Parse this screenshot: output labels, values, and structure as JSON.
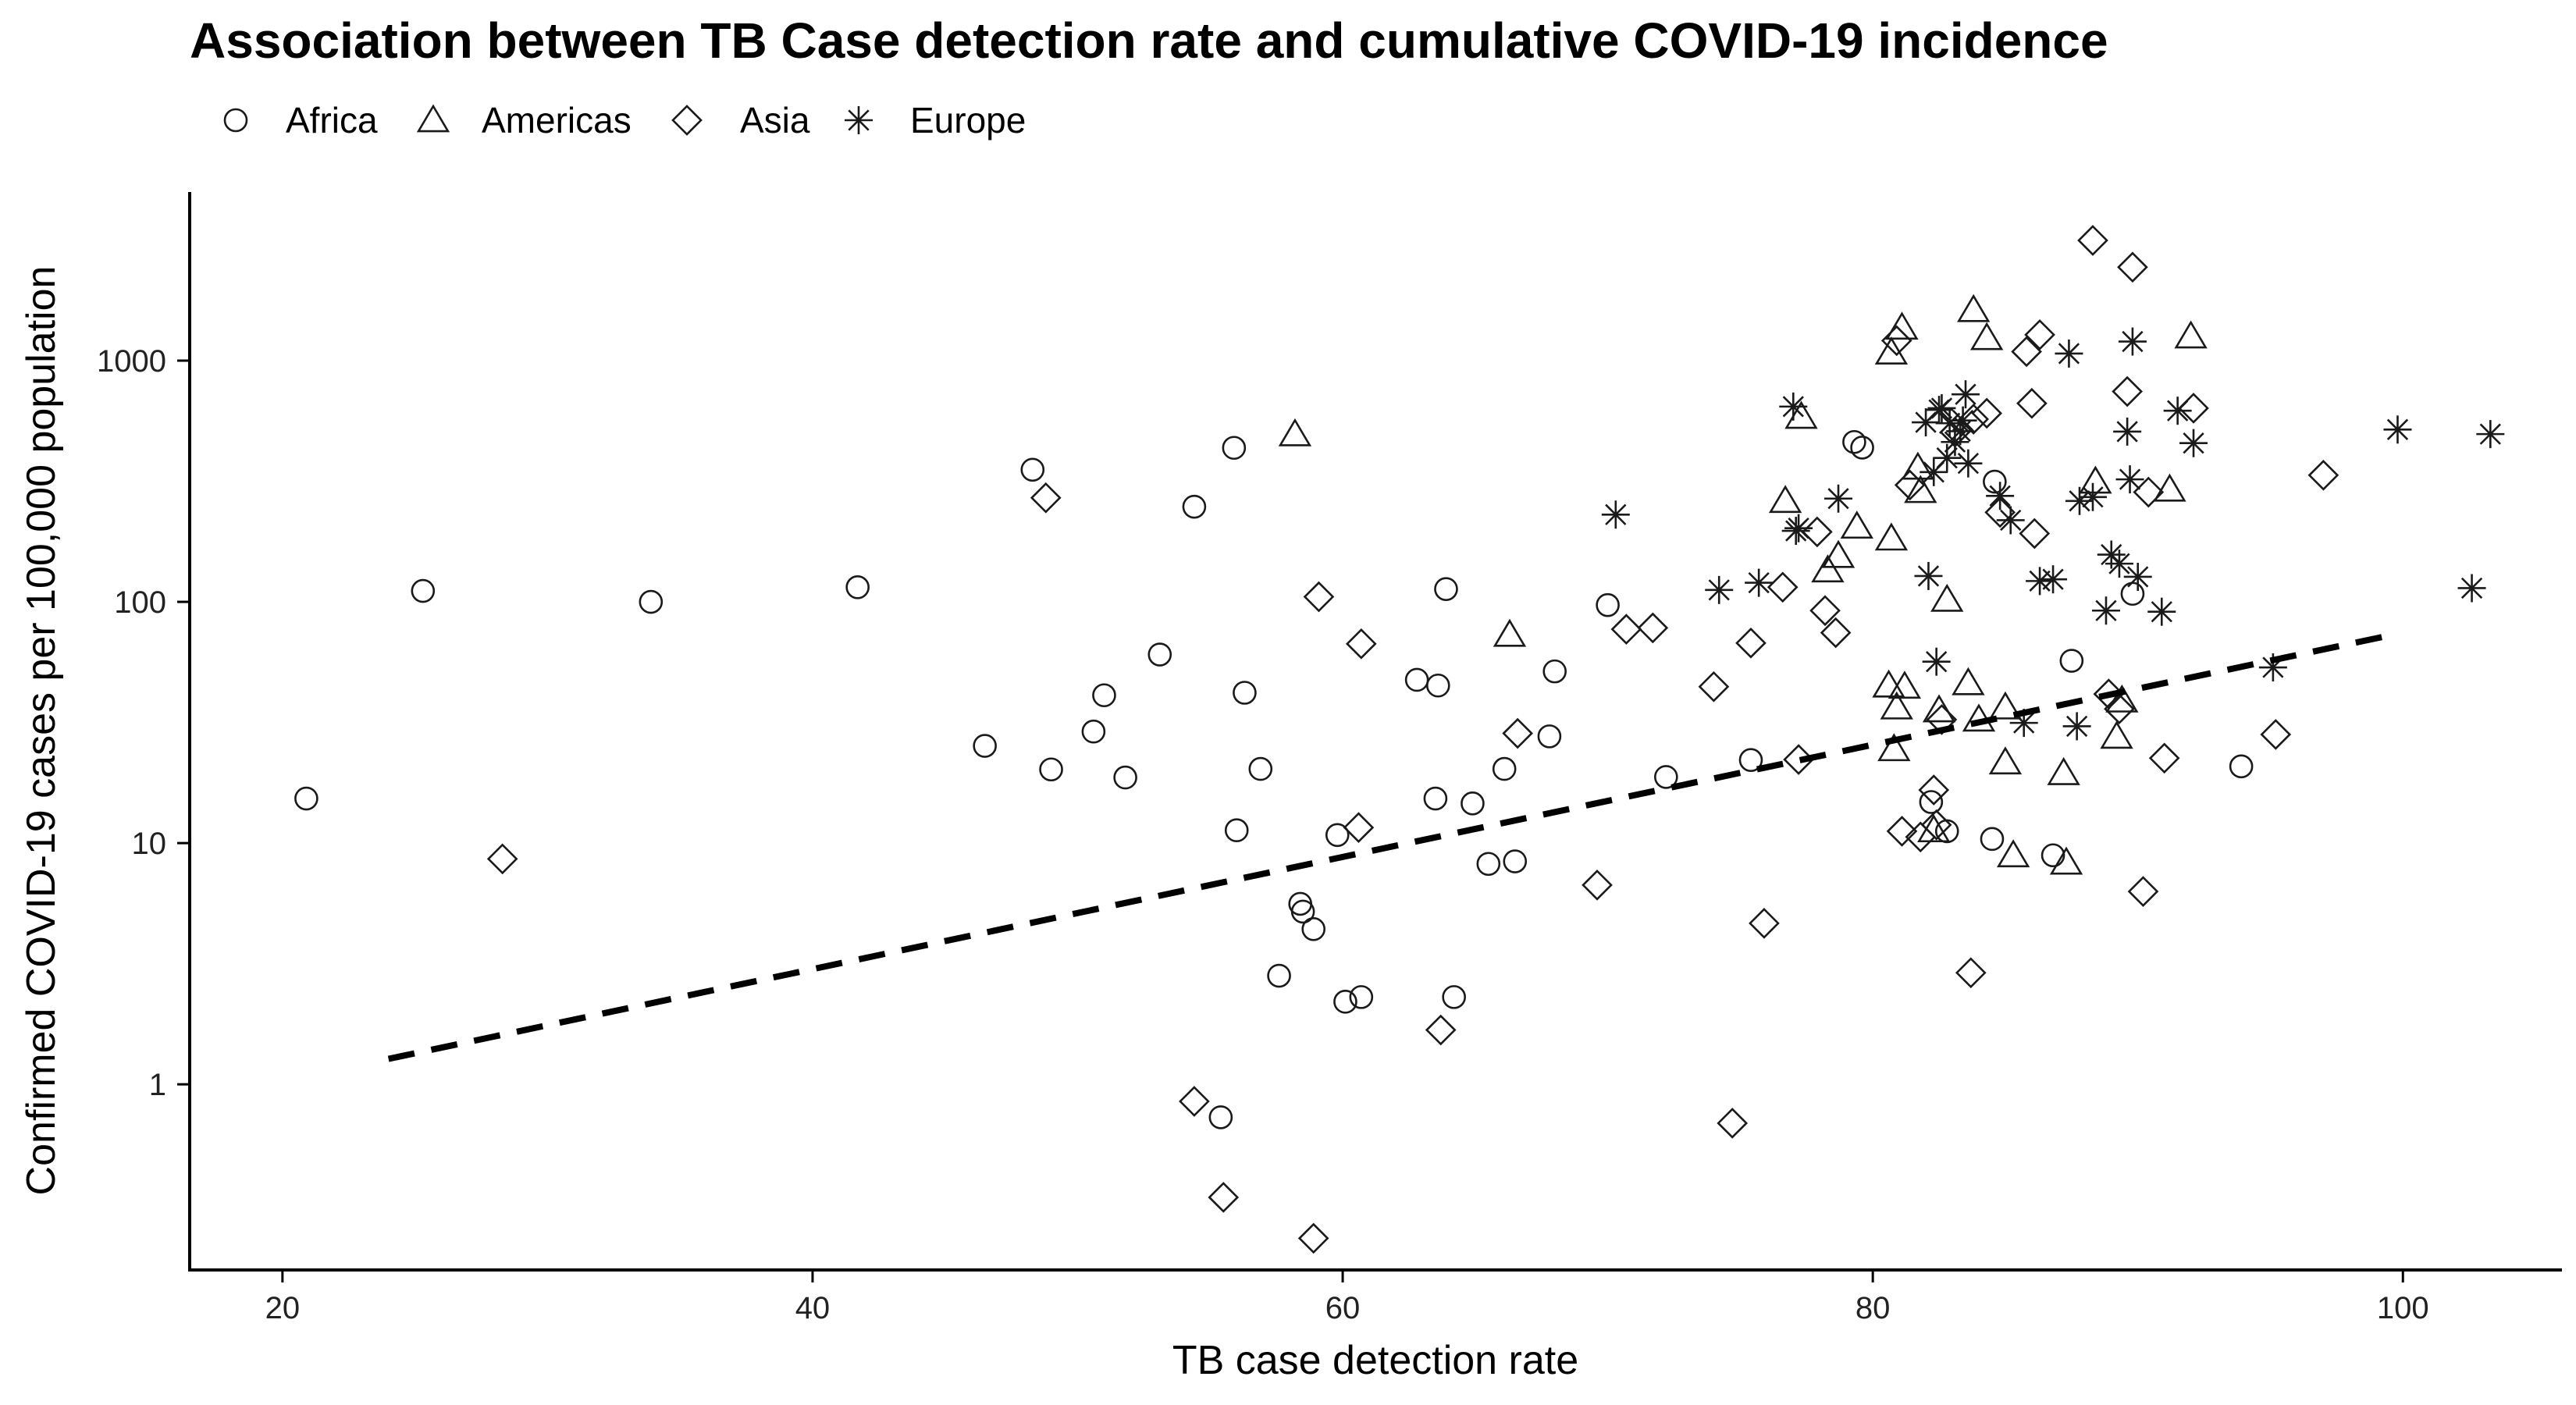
{
  "chart_data": {
    "type": "scatter",
    "title": "Association between TB Case detection rate and cumulative COVID-19 incidence",
    "xlabel": "TB case detection rate",
    "ylabel": "Confirmed COVID-19 cases per 100,000 population",
    "xlim": [
      16.5,
      106
    ],
    "ylim": [
      0.17,
      5000
    ],
    "y_scale": "log",
    "x_ticks": [
      20,
      40,
      60,
      80,
      100
    ],
    "y_ticks": [
      1,
      10,
      100,
      1000
    ],
    "legend_position": "top-left",
    "grid": false,
    "series": [
      {
        "name": "Africa",
        "marker": "circle",
        "points": [
          [
            20.9,
            15.3
          ],
          [
            25.3,
            111
          ],
          [
            33.9,
            100
          ],
          [
            41.7,
            115
          ],
          [
            46.5,
            25.3
          ],
          [
            48.3,
            353
          ],
          [
            49.0,
            20.2
          ],
          [
            50.6,
            29.0
          ],
          [
            51.0,
            41.0
          ],
          [
            51.8,
            18.7
          ],
          [
            53.1,
            60.5
          ],
          [
            54.4,
            248
          ],
          [
            55.4,
            0.73
          ],
          [
            55.9,
            435
          ],
          [
            56.0,
            11.3
          ],
          [
            56.3,
            42.0
          ],
          [
            56.9,
            20.3
          ],
          [
            57.6,
            2.82
          ],
          [
            58.4,
            5.6
          ],
          [
            58.5,
            5.2
          ],
          [
            58.9,
            4.4
          ],
          [
            59.8,
            10.8
          ],
          [
            60.1,
            2.2
          ],
          [
            60.7,
            2.3
          ],
          [
            62.8,
            47.5
          ],
          [
            63.5,
            15.3
          ],
          [
            63.6,
            45.0
          ],
          [
            63.9,
            113
          ],
          [
            64.2,
            2.3
          ],
          [
            64.9,
            14.6
          ],
          [
            65.5,
            8.2
          ],
          [
            66.1,
            20.3
          ],
          [
            66.5,
            8.4
          ],
          [
            67.8,
            27.7
          ],
          [
            68.0,
            51.5
          ],
          [
            70.0,
            97
          ],
          [
            72.2,
            18.8
          ],
          [
            75.4,
            22.1
          ],
          [
            79.3,
            460
          ],
          [
            79.6,
            436
          ],
          [
            82.2,
            14.8
          ],
          [
            82.8,
            11.2
          ],
          [
            84.5,
            10.4
          ],
          [
            84.6,
            315
          ],
          [
            86.8,
            8.9
          ],
          [
            87.5,
            57
          ],
          [
            89.8,
            108
          ],
          [
            93.9,
            20.8
          ]
        ]
      },
      {
        "name": "Americas",
        "marker": "triangle",
        "points": [
          [
            58.2,
            495
          ],
          [
            66.3,
            73
          ],
          [
            76.7,
            262
          ],
          [
            77.3,
            585
          ],
          [
            78.3,
            135
          ],
          [
            78.7,
            155
          ],
          [
            79.4,
            205
          ],
          [
            80.6,
            45
          ],
          [
            80.7,
            1080
          ],
          [
            80.7,
            183
          ],
          [
            80.8,
            24.5
          ],
          [
            80.9,
            36.5
          ],
          [
            81.1,
            1370
          ],
          [
            81.2,
            44.5
          ],
          [
            81.7,
            360
          ],
          [
            81.8,
            288
          ],
          [
            82.3,
            11.3
          ],
          [
            82.5,
            35.5
          ],
          [
            82.8,
            102
          ],
          [
            83.6,
            46
          ],
          [
            83.8,
            1620
          ],
          [
            84.0,
            32.5
          ],
          [
            84.3,
            1240
          ],
          [
            85.0,
            36.5
          ],
          [
            85.0,
            21.6
          ],
          [
            85.3,
            8.9
          ],
          [
            87.2,
            19.5
          ],
          [
            87.3,
            8.3
          ],
          [
            88.4,
            315
          ],
          [
            89.2,
            27.6
          ],
          [
            89.4,
            39
          ],
          [
            91.2,
            292
          ],
          [
            92.0,
            1260
          ]
        ]
      },
      {
        "name": "Asia",
        "marker": "diamond",
        "points": [
          [
            28.3,
            8.6
          ],
          [
            48.8,
            270
          ],
          [
            54.4,
            0.85
          ],
          [
            55.5,
            0.34
          ],
          [
            58.9,
            0.23
          ],
          [
            59.1,
            105
          ],
          [
            60.6,
            11.6
          ],
          [
            60.7,
            67
          ],
          [
            63.7,
            1.68
          ],
          [
            66.6,
            28.5
          ],
          [
            69.6,
            6.7
          ],
          [
            70.7,
            77
          ],
          [
            71.7,
            78
          ],
          [
            74.0,
            44.5
          ],
          [
            74.7,
            0.69
          ],
          [
            75.4,
            67.5
          ],
          [
            75.9,
            4.65
          ],
          [
            76.6,
            115
          ],
          [
            77.2,
            22.2
          ],
          [
            77.9,
            195
          ],
          [
            78.2,
            92
          ],
          [
            78.6,
            74.5
          ],
          [
            80.9,
            1210
          ],
          [
            81.1,
            11.2
          ],
          [
            81.4,
            305
          ],
          [
            81.8,
            10.6
          ],
          [
            82.3,
            16.6
          ],
          [
            82.4,
            11.9
          ],
          [
            82.6,
            32.5
          ],
          [
            83.1,
            505
          ],
          [
            83.8,
            572
          ],
          [
            83.7,
            2.9
          ],
          [
            84.3,
            605
          ],
          [
            84.8,
            235
          ],
          [
            85.8,
            1090
          ],
          [
            86.0,
            665
          ],
          [
            86.1,
            192
          ],
          [
            86.3,
            1280
          ],
          [
            88.3,
            3150
          ],
          [
            88.9,
            41.5
          ],
          [
            89.3,
            36
          ],
          [
            89.6,
            745
          ],
          [
            89.8,
            2440
          ],
          [
            90.2,
            6.3
          ],
          [
            90.4,
            285
          ],
          [
            91.0,
            22.5
          ],
          [
            92.1,
            635
          ],
          [
            95.2,
            28.2
          ],
          [
            97.0,
            335
          ]
        ]
      },
      {
        "name": "Europe",
        "marker": "asterisk",
        "points": [
          [
            70.3,
            230
          ],
          [
            74.2,
            112
          ],
          [
            75.7,
            120
          ],
          [
            77.0,
            645
          ],
          [
            77.1,
            197
          ],
          [
            77.2,
            202
          ],
          [
            78.7,
            268
          ],
          [
            82.0,
            555
          ],
          [
            82.1,
            128
          ],
          [
            82.3,
            345
          ],
          [
            82.4,
            56.5
          ],
          [
            82.5,
            625
          ],
          [
            82.6,
            635
          ],
          [
            82.8,
            395
          ],
          [
            82.9,
            550
          ],
          [
            83.1,
            460
          ],
          [
            83.3,
            510
          ],
          [
            83.4,
            565
          ],
          [
            83.5,
            725
          ],
          [
            83.6,
            375
          ],
          [
            84.8,
            275
          ],
          [
            85.2,
            218
          ],
          [
            85.7,
            31.5
          ],
          [
            86.3,
            122
          ],
          [
            86.8,
            124
          ],
          [
            87.4,
            1070
          ],
          [
            87.7,
            30.5
          ],
          [
            87.8,
            262
          ],
          [
            88.3,
            272
          ],
          [
            88.8,
            92
          ],
          [
            89.0,
            157
          ],
          [
            89.3,
            144
          ],
          [
            89.6,
            508
          ],
          [
            89.7,
            322
          ],
          [
            89.8,
            1200
          ],
          [
            90.0,
            127
          ],
          [
            90.9,
            91
          ],
          [
            91.5,
            620
          ],
          [
            92.1,
            455
          ],
          [
            95.1,
            53.5
          ],
          [
            99.8,
            518
          ],
          [
            102.6,
            114
          ],
          [
            103.3,
            496
          ]
        ]
      }
    ],
    "trend_line": {
      "style": "dashed",
      "x_range": [
        24,
        99.8
      ],
      "intercept_log10": -0.4525,
      "slope_log10": 0.02325
    }
  }
}
